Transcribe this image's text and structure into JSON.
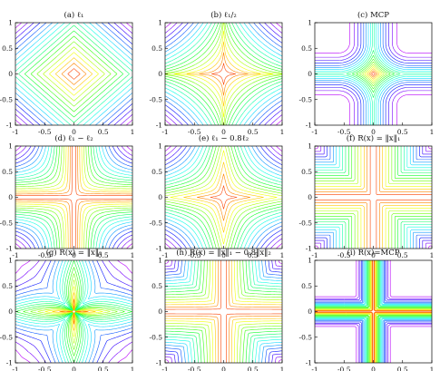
{
  "chart_data": [
    {
      "type": "contour",
      "title": "(a) ℓ₁",
      "function": "l1",
      "x": [
        -1,
        1
      ],
      "y": [
        -1,
        1
      ],
      "xticks": [
        "-1",
        "-0.5",
        "0",
        "0.5",
        "1"
      ],
      "yticks": [
        "1",
        "0.5",
        "0",
        "-0.5",
        "-1"
      ],
      "levels": 18,
      "colormap": "hsv"
    },
    {
      "type": "contour",
      "title": "(b) ℓ₁/₂",
      "function": "lhalf",
      "x": [
        -1,
        1
      ],
      "y": [
        -1,
        1
      ],
      "xticks": [
        "-1",
        "-0.5",
        "0",
        "0.5",
        "1"
      ],
      "yticks": [
        "1",
        "0.5",
        "0",
        "-0.5",
        "-1"
      ],
      "levels": 18,
      "colormap": "hsv"
    },
    {
      "type": "contour",
      "title": "(c) MCP",
      "function": "mcp",
      "x": [
        -1,
        1
      ],
      "y": [
        -1,
        1
      ],
      "xticks": [
        "-1",
        "-0.5",
        "0",
        "0.5",
        "1"
      ],
      "yticks": [
        "1",
        "0.5",
        "0",
        "-0.5",
        "-1"
      ],
      "levels": 18,
      "colormap": "hsv"
    },
    {
      "type": "contour",
      "title": "(d) ℓ₁ − ℓ₂",
      "function": "l1-l2",
      "x": [
        -1,
        1
      ],
      "y": [
        -1,
        1
      ],
      "xticks": [
        "-1",
        "-0.5",
        "0",
        "0.5",
        "1"
      ],
      "yticks": [
        "1",
        "0.5",
        "0",
        "-0.5",
        "-1"
      ],
      "levels": 18,
      "colormap": "hsv"
    },
    {
      "type": "contour",
      "title": "(e) ℓ₁ − 0.8ℓ₂",
      "function": "l1-0.8l2",
      "x": [
        -1,
        1
      ],
      "y": [
        -1,
        1
      ],
      "xticks": [
        "-1",
        "-0.5",
        "0",
        "0.5",
        "1"
      ],
      "yticks": [
        "1",
        "0.5",
        "0",
        "-0.5",
        "-1"
      ],
      "levels": 18,
      "colormap": "hsv"
    },
    {
      "type": "contour",
      "title": "(f) R(x) = ‖x‖₁",
      "function": "R-l1",
      "x": [
        -1,
        1
      ],
      "y": [
        -1,
        1
      ],
      "xticks": [
        "-1",
        "-0.5",
        "0",
        "0.5",
        "1"
      ],
      "yticks": [
        "1",
        "0.5",
        "0",
        "-0.5",
        "-1"
      ],
      "levels": 18,
      "colormap": "hsv"
    },
    {
      "type": "contour",
      "title": "(g) R(x) = ‖x‖₂",
      "function": "R-l2",
      "x": [
        -1,
        1
      ],
      "y": [
        -1,
        1
      ],
      "xticks": [
        "-1",
        "-0.5",
        "0",
        "0.5",
        "1"
      ],
      "yticks": [
        "1",
        "0.5",
        "0",
        "-0.5",
        "-1"
      ],
      "levels": 18,
      "colormap": "hsv"
    },
    {
      "type": "contour",
      "title": "(h) R(x) = ‖x‖₁ − 0.8‖x‖₂",
      "function": "R-l1-0.8l2",
      "x": [
        -1,
        1
      ],
      "y": [
        -1,
        1
      ],
      "xticks": [
        "-1",
        "-0.5",
        "0",
        "0.5",
        "1"
      ],
      "yticks": [
        "1",
        "0.5",
        "0",
        "-0.5",
        "-1"
      ],
      "levels": 18,
      "colormap": "hsv"
    },
    {
      "type": "contour",
      "title": "(i) R(x)=MCP",
      "function": "R-mcp",
      "x": [
        -1,
        1
      ],
      "y": [
        -1,
        1
      ],
      "xticks": [
        "-1",
        "-0.5",
        "0",
        "0.5",
        "1"
      ],
      "yticks": [
        "1",
        "0.5",
        "0",
        "-0.5",
        "-1"
      ],
      "levels": 18,
      "colormap": "hsv"
    }
  ]
}
